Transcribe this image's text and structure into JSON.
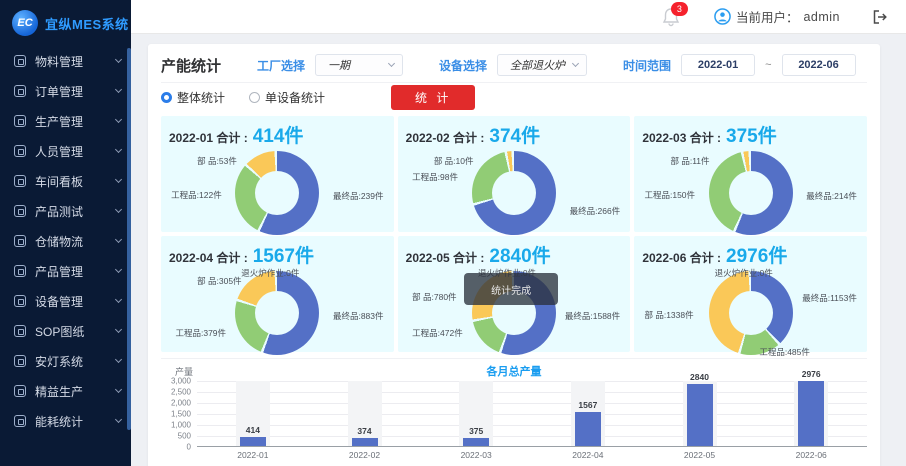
{
  "brand": {
    "logo_text": "EC",
    "app_name": "宜纵MES系统"
  },
  "sidebar": {
    "items": [
      {
        "label": "物料管理",
        "icon": "materials-icon"
      },
      {
        "label": "订单管理",
        "icon": "orders-icon"
      },
      {
        "label": "生产管理",
        "icon": "production-icon"
      },
      {
        "label": "人员管理",
        "icon": "personnel-icon"
      },
      {
        "label": "车间看板",
        "icon": "workshop-board-icon"
      },
      {
        "label": "产品测试",
        "icon": "product-test-icon"
      },
      {
        "label": "仓储物流",
        "icon": "warehouse-logistics-icon"
      },
      {
        "label": "产品管理",
        "icon": "product-mgmt-icon"
      },
      {
        "label": "设备管理",
        "icon": "equipment-icon"
      },
      {
        "label": "SOP图纸",
        "icon": "sop-drawings-icon"
      },
      {
        "label": "安灯系统",
        "icon": "andon-icon"
      },
      {
        "label": "精益生产",
        "icon": "lean-production-icon"
      },
      {
        "label": "能耗统计",
        "icon": "energy-stats-icon"
      }
    ]
  },
  "header": {
    "notification_count": "3",
    "user_label": "当前用户：",
    "username": "admin"
  },
  "filters": {
    "panel_title": "产能统计",
    "factory_label": "工厂选择",
    "factory_value": "一期",
    "device_label": "设备选择",
    "device_value": "全部退火炉",
    "range_label": "时间范围",
    "date_from": "2022-01",
    "date_sep": "~",
    "date_to": "2022-06",
    "radio_overall": "整体统计",
    "radio_single": "单设备统计",
    "submit_label": "统 计"
  },
  "colors": {
    "blue": "#5470c6",
    "green": "#91cc75",
    "yellow": "#fac858",
    "red": "#ee6666",
    "accent": "#19a9ea",
    "danger": "#e12b2b",
    "panel_bg": "#e9fcff"
  },
  "donuts": [
    {
      "title": "2022-01 合计 :",
      "total": "414件",
      "segments": [
        {
          "name": "最终品",
          "value": 239,
          "color": "blue"
        },
        {
          "name": "工程品",
          "value": 122,
          "color": "green"
        },
        {
          "name": "部品",
          "value": 53,
          "color": "yellow"
        }
      ],
      "labels": [
        {
          "text": "部  品:53件",
          "pos": "topleft"
        },
        {
          "text": "工程品:122件",
          "pos": "left"
        },
        {
          "text": "最终品:239件",
          "pos": "right"
        }
      ]
    },
    {
      "title": "2022-02 合计 :",
      "total": "374件",
      "segments": [
        {
          "name": "最终品",
          "value": 266,
          "color": "blue"
        },
        {
          "name": "工程品",
          "value": 98,
          "color": "green"
        },
        {
          "name": "部品",
          "value": 10,
          "color": "yellow"
        }
      ],
      "labels": [
        {
          "text": "部  品:10件",
          "pos": "topleft"
        },
        {
          "text": "工程品:98件",
          "pos": "lefthigh"
        },
        {
          "text": "最终品:266件",
          "pos": "rightlow"
        }
      ]
    },
    {
      "title": "2022-03 合计 :",
      "total": "375件",
      "segments": [
        {
          "name": "最终品",
          "value": 214,
          "color": "blue"
        },
        {
          "name": "工程品",
          "value": 150,
          "color": "green"
        },
        {
          "name": "部品",
          "value": 11,
          "color": "yellow"
        }
      ],
      "labels": [
        {
          "text": "部  品:11件",
          "pos": "topleft"
        },
        {
          "text": "工程品:150件",
          "pos": "left"
        },
        {
          "text": "最终品:214件",
          "pos": "right"
        }
      ]
    },
    {
      "title": "2022-04 合计 :",
      "total": "1567件",
      "segments": [
        {
          "name": "最终品",
          "value": 883,
          "color": "blue"
        },
        {
          "name": "工程品",
          "value": 379,
          "color": "green"
        },
        {
          "name": "部品",
          "value": 305,
          "color": "yellow"
        },
        {
          "name": "退火炉作业",
          "value": 0,
          "color": "red"
        }
      ],
      "labels": [
        {
          "text": "退火炉作业:0件",
          "pos": "top"
        },
        {
          "text": "部  品:305件",
          "pos": "topleft"
        },
        {
          "text": "工程品:379件",
          "pos": "leftlow"
        },
        {
          "text": "最终品:883件",
          "pos": "right"
        }
      ]
    },
    {
      "title": "2022-05 合计 :",
      "total": "2840件",
      "segments": [
        {
          "name": "最终品",
          "value": 1588,
          "color": "blue"
        },
        {
          "name": "工程品",
          "value": 472,
          "color": "green"
        },
        {
          "name": "部品",
          "value": 780,
          "color": "yellow"
        },
        {
          "name": "退火炉作业",
          "value": 0,
          "color": "red"
        }
      ],
      "labels": [
        {
          "text": "退火炉作业:0件",
          "pos": "top"
        },
        {
          "text": "部  品:780件",
          "pos": "lefthigh"
        },
        {
          "text": "工程品:472件",
          "pos": "leftlow"
        },
        {
          "text": "最终品:1588件",
          "pos": "right"
        }
      ],
      "tooltip": "统计完成"
    },
    {
      "title": "2022-06 合计 :",
      "total": "2976件",
      "segments": [
        {
          "name": "最终品",
          "value": 1153,
          "color": "blue"
        },
        {
          "name": "工程品",
          "value": 485,
          "color": "green"
        },
        {
          "name": "部品",
          "value": 1338,
          "color": "yellow"
        },
        {
          "name": "退火炉作业",
          "value": 0,
          "color": "red"
        }
      ],
      "labels": [
        {
          "text": "退火炉作业:0件",
          "pos": "top"
        },
        {
          "text": "部  品:1338件",
          "pos": "left"
        },
        {
          "text": "工程品:485件",
          "pos": "bottom"
        },
        {
          "text": "最终品:1153件",
          "pos": "righthigh"
        }
      ]
    }
  ],
  "chart_data": {
    "type": "bar",
    "title": "各月总产量",
    "ylabel": "产量",
    "categories": [
      "2022-01",
      "2022-02",
      "2022-03",
      "2022-04",
      "2022-05",
      "2022-06"
    ],
    "values": [
      414,
      374,
      375,
      1567,
      2840,
      2976
    ],
    "ymax": 3000,
    "yticks": [
      "3,000",
      "2,500",
      "2,000",
      "1,500",
      "1,000",
      "500",
      "0"
    ],
    "bar_color": "#5470c6",
    "grid": true,
    "legend": "none"
  }
}
